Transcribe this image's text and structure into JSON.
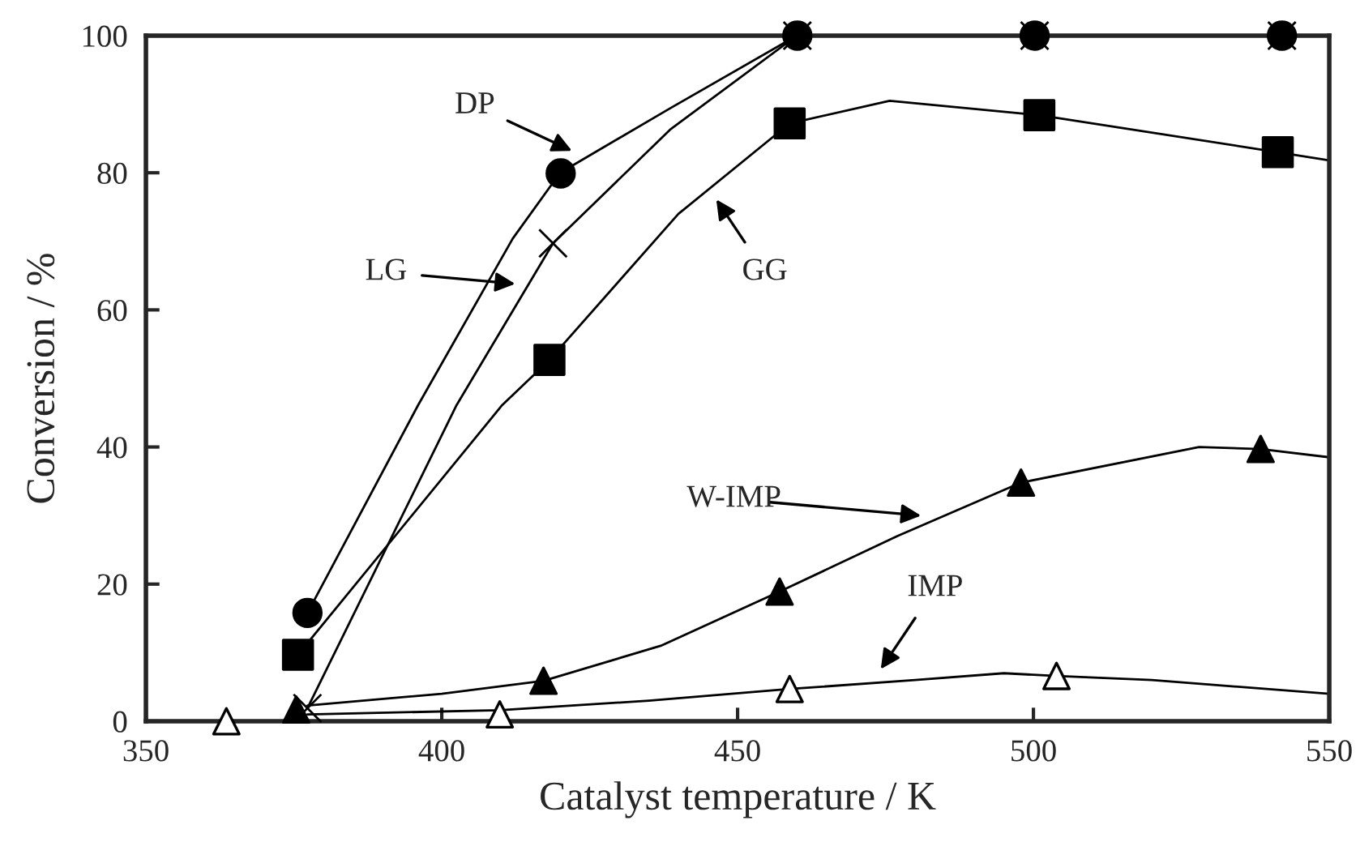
{
  "chart_data": {
    "type": "scatter",
    "xlabel": "Catalyst temperature / K",
    "ylabel": "Conversion / %",
    "xlim": [
      350,
      550
    ],
    "ylim": [
      0,
      100
    ],
    "xticks": [
      350,
      400,
      450,
      500,
      550
    ],
    "yticks": [
      0,
      20,
      40,
      60,
      80,
      100
    ],
    "grid": false,
    "legend": false,
    "series": [
      {
        "type": "line",
        "marker": "none",
        "color": "#000000",
        "x": [
          377.3,
          396,
          412,
          420,
          438.6,
          460,
          500,
          542
        ],
        "values": [
          15.8,
          46.1,
          70.4,
          80,
          89.4,
          100,
          100,
          100
        ]
      },
      {
        "type": "line",
        "marker": "none",
        "color": "#000000",
        "x": [
          377.3,
          402.5,
          418.8,
          438.6,
          460,
          500,
          542
        ],
        "values": [
          1.9,
          46.1,
          69.7,
          86.3,
          100,
          100,
          100
        ]
      },
      {
        "type": "line",
        "marker": "none",
        "color": "#000000",
        "x": [
          375.7,
          410.2,
          418.2,
          440,
          458.8,
          475.7,
          501,
          541.3,
          550
        ],
        "values": [
          9.7,
          46.1,
          52.7,
          74,
          87.2,
          90.5,
          88.4,
          83.0,
          81.8
        ]
      },
      {
        "type": "line",
        "marker": "none",
        "color": "#000000",
        "x": [
          377.3,
          400,
          417.2,
          437,
          457.1,
          477,
          497.9,
          528,
          538.4,
          550
        ],
        "values": [
          2.3,
          4,
          5.9,
          11,
          18.9,
          27,
          34.8,
          40.0,
          39.7,
          38.5
        ]
      },
      {
        "type": "line",
        "marker": "none",
        "color": "#000000",
        "x": [
          377.3,
          409.8,
          435,
          458.8,
          480,
          495,
          503.9,
          520,
          550
        ],
        "values": [
          1,
          1.6,
          3,
          4.7,
          6,
          7,
          6.6,
          6,
          4.0
        ]
      },
      {
        "marker": "circle",
        "color": "#000000",
        "x": [
          377.3,
          420.1,
          460.1,
          500.2,
          542
        ],
        "values": [
          15.8,
          79.9,
          100,
          100,
          100
        ]
      },
      {
        "marker": "cross",
        "color": "#000000",
        "x": [
          377.3,
          418.8,
          460.1,
          500.2,
          542
        ],
        "values": [
          1.9,
          69.7,
          100,
          100,
          100
        ]
      },
      {
        "marker": "square",
        "color": "#000000",
        "x": [
          375.7,
          418.2,
          458.8,
          501,
          541.3
        ],
        "values": [
          9.7,
          52.7,
          87.2,
          88.4,
          83.0
        ]
      },
      {
        "marker": "triangle",
        "color": "#000000",
        "x": [
          375.4,
          417.2,
          457.1,
          497.9,
          538.4
        ],
        "values": [
          1.7,
          5.9,
          18.9,
          34.8,
          39.7
        ]
      },
      {
        "marker": "triangle",
        "color": "#ffffff",
        "x": [
          363.6,
          409.8,
          458.8,
          503.9
        ],
        "values": [
          0,
          1,
          4.7,
          6.6
        ]
      }
    ],
    "annotations": [
      "DP",
      "LG",
      "GG",
      "W-IMP",
      "IMP"
    ]
  }
}
